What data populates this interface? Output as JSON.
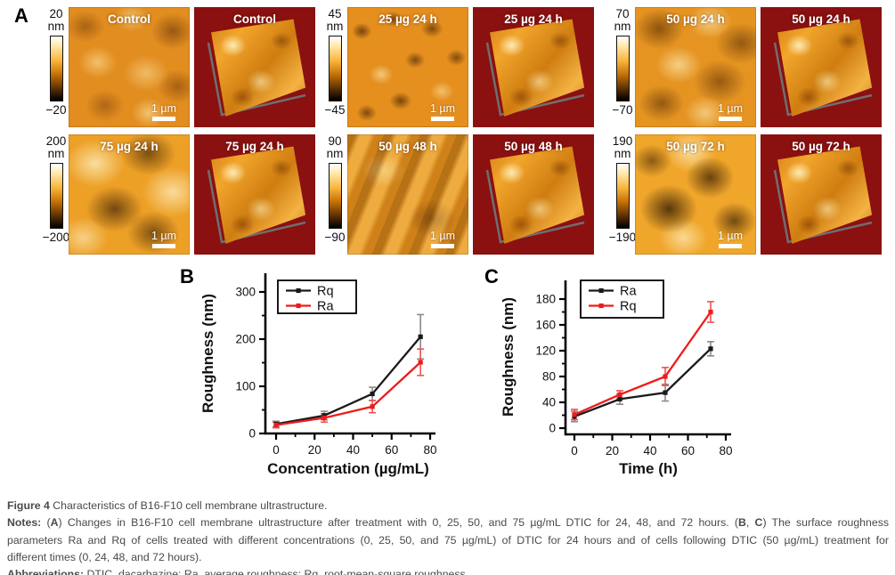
{
  "panel_a": {
    "label": "A",
    "rows": [
      {
        "groups": [
          {
            "scale_max": "20",
            "unit": "nm",
            "scale_min": "−20",
            "label": "Control",
            "scalebar": "1 µm"
          },
          {
            "scale_max": "45",
            "unit": "nm",
            "scale_min": "−45",
            "label": "25 µg 24 h",
            "scalebar": "1 µm"
          },
          {
            "scale_max": "70",
            "unit": "nm",
            "scale_min": "−70",
            "label": "50 µg 24 h",
            "scalebar": "1 µm"
          }
        ]
      },
      {
        "groups": [
          {
            "scale_max": "200",
            "unit": "nm",
            "scale_min": "−200",
            "label": "75 µg 24 h",
            "scalebar": "1 µm"
          },
          {
            "scale_max": "90",
            "unit": "nm",
            "scale_min": "−90",
            "label": "50 µg 48 h",
            "scalebar": "1 µm"
          },
          {
            "scale_max": "190",
            "unit": "nm",
            "scale_min": "−190",
            "label": "50 µg 72 h",
            "scalebar": "1 µm"
          }
        ]
      }
    ]
  },
  "chart_data": [
    {
      "type": "line",
      "panel": "B",
      "title": "",
      "xlabel": "Concentration (µg/mL)",
      "ylabel": "Roughness (nm)",
      "x": [
        0,
        25,
        50,
        75
      ],
      "xticks": [
        0,
        20,
        40,
        60,
        80
      ],
      "yticks": [
        0,
        100,
        200,
        300
      ],
      "xlim": [
        0,
        80
      ],
      "ylim": [
        0,
        340
      ],
      "grid": false,
      "legend_position": "top-left",
      "series": [
        {
          "name": "Rq",
          "color": "#1a1a1a",
          "error_color": "#8a8a8a",
          "values": [
            20,
            38,
            84,
            205
          ],
          "errors": [
            6,
            9,
            14,
            47
          ]
        },
        {
          "name": "Ra",
          "color": "#ec1c1c",
          "error_color": "#ef5350",
          "values": [
            18,
            33,
            57,
            151
          ],
          "errors": [
            6,
            9,
            13,
            28
          ]
        }
      ]
    },
    {
      "type": "line",
      "panel": "C",
      "title": "",
      "xlabel": "Time (h)",
      "ylabel": "Roughness (nm)",
      "x": [
        0,
        24,
        48,
        72
      ],
      "xticks": [
        0,
        20,
        40,
        60,
        80
      ],
      "yticks": [
        0,
        40,
        80,
        120,
        160,
        180
      ],
      "xlim": [
        0,
        80
      ],
      "ylim": [
        0,
        200
      ],
      "grid": false,
      "legend_position": "top-left",
      "series": [
        {
          "name": "Ra",
          "color": "#1a1a1a",
          "error_color": "#8a8a8a",
          "values": [
            18,
            45,
            55,
            123
          ],
          "errors": [
            8,
            8,
            13,
            11
          ]
        },
        {
          "name": "Rq",
          "color": "#ec1c1c",
          "error_color": "#ef5350",
          "values": [
            21,
            52,
            80,
            170
          ],
          "errors": [
            8,
            6,
            14,
            8
          ]
        }
      ]
    }
  ],
  "caption": {
    "lines": [
      {
        "align": "left",
        "segments": [
          {
            "t": "Figure 4 ",
            "b": true
          },
          {
            "t": "Characteristics of B16-F10 cell membrane ultrastructure.",
            "b": false
          }
        ]
      },
      {
        "align": "justify",
        "segments": [
          {
            "t": "Notes: ",
            "b": true
          },
          {
            "t": "(",
            "b": false
          },
          {
            "t": "A",
            "b": true
          },
          {
            "t": ") Changes in B16-F10 cell membrane ultrastructure after treatment with 0, 25, 50, and 75 µg/mL DTIC for 24, 48, and 72 hours. (",
            "b": false
          },
          {
            "t": "B",
            "b": true
          },
          {
            "t": ", ",
            "b": false
          },
          {
            "t": "C",
            "b": true
          },
          {
            "t": ") The surface roughness",
            "b": false
          }
        ]
      },
      {
        "align": "justify",
        "segments": [
          {
            "t": "parameters Ra and Rq of cells treated with different concentrations (0, 25, 50, and 75 µg/mL) of DTIC for 24 hours and of cells following DTIC (50 µg/mL) treatment for",
            "b": false
          }
        ]
      },
      {
        "align": "left",
        "segments": [
          {
            "t": "different times (0, 24, 48, and 72 hours).",
            "b": false
          }
        ]
      },
      {
        "align": "left",
        "segments": [
          {
            "t": "Abbreviations: ",
            "b": true
          },
          {
            "t": "DTIC, dacarbazine; Ra, average roughness; Rq, root-mean-square roughness.",
            "b": false
          }
        ]
      }
    ]
  },
  "colors": {
    "afm_3d_background": "#8b1010",
    "afm_base_orange": "#e58f1e",
    "series_black": "#1a1a1a",
    "series_red": "#ec1c1c",
    "caption_text": "#4a4a4c"
  }
}
